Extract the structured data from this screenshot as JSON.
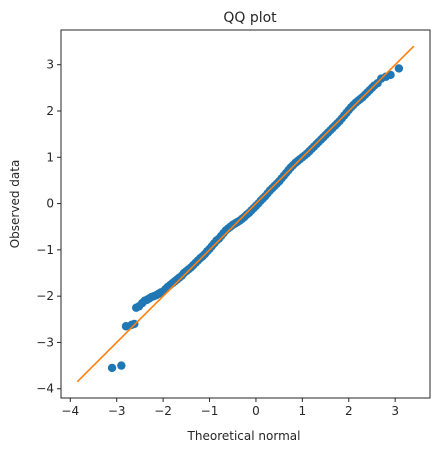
{
  "chart_data": {
    "type": "scatter",
    "title": "QQ plot",
    "xlabel": "Theoretical normal",
    "ylabel": "Observed data",
    "xlim": [
      -4.2,
      3.75
    ],
    "ylim": [
      -4.2,
      3.75
    ],
    "xticks": [
      -4,
      -3,
      -2,
      -1,
      0,
      1,
      2,
      3
    ],
    "yticks": [
      -4,
      -3,
      -2,
      -1,
      0,
      1,
      2,
      3
    ],
    "grid": false,
    "colors": {
      "points": "#1f77b4",
      "line": "#ff7f0e",
      "axes": "#262626"
    },
    "reference_line": {
      "x": [
        -3.85,
        3.4
      ],
      "y": [
        -3.85,
        3.4
      ]
    },
    "points": [
      {
        "x": -3.1,
        "y": -3.55
      },
      {
        "x": -2.9,
        "y": -3.5
      },
      {
        "x": -2.8,
        "y": -2.65
      },
      {
        "x": -2.68,
        "y": -2.62
      },
      {
        "x": -2.62,
        "y": -2.6
      },
      {
        "x": -2.58,
        "y": -2.25
      },
      {
        "x": -2.52,
        "y": -2.22
      },
      {
        "x": -2.45,
        "y": -2.15
      },
      {
        "x": -2.4,
        "y": -2.1
      },
      {
        "x": -2.35,
        "y": -2.08
      },
      {
        "x": -2.3,
        "y": -2.05
      },
      {
        "x": -2.25,
        "y": -2.02
      },
      {
        "x": -2.2,
        "y": -2.0
      },
      {
        "x": -2.15,
        "y": -1.98
      },
      {
        "x": -2.1,
        "y": -1.95
      },
      {
        "x": -2.05,
        "y": -1.92
      },
      {
        "x": -2.0,
        "y": -1.9
      },
      {
        "x": -1.95,
        "y": -1.85
      },
      {
        "x": -1.9,
        "y": -1.8
      },
      {
        "x": -1.85,
        "y": -1.76
      },
      {
        "x": -1.8,
        "y": -1.72
      },
      {
        "x": -1.75,
        "y": -1.68
      },
      {
        "x": -1.7,
        "y": -1.64
      },
      {
        "x": -1.65,
        "y": -1.6
      },
      {
        "x": -1.6,
        "y": -1.56
      },
      {
        "x": -1.55,
        "y": -1.5
      },
      {
        "x": -1.5,
        "y": -1.46
      },
      {
        "x": -1.45,
        "y": -1.42
      },
      {
        "x": -1.4,
        "y": -1.38
      },
      {
        "x": -1.35,
        "y": -1.33
      },
      {
        "x": -1.3,
        "y": -1.28
      },
      {
        "x": -1.25,
        "y": -1.23
      },
      {
        "x": -1.2,
        "y": -1.18
      },
      {
        "x": -1.15,
        "y": -1.14
      },
      {
        "x": -1.1,
        "y": -1.09
      },
      {
        "x": -1.05,
        "y": -1.03
      },
      {
        "x": -1.0,
        "y": -0.98
      },
      {
        "x": -0.95,
        "y": -0.92
      },
      {
        "x": -0.9,
        "y": -0.86
      },
      {
        "x": -0.85,
        "y": -0.8
      },
      {
        "x": -0.8,
        "y": -0.76
      },
      {
        "x": -0.75,
        "y": -0.7
      },
      {
        "x": -0.7,
        "y": -0.64
      },
      {
        "x": -0.65,
        "y": -0.58
      },
      {
        "x": -0.6,
        "y": -0.54
      },
      {
        "x": -0.55,
        "y": -0.5
      },
      {
        "x": -0.5,
        "y": -0.46
      },
      {
        "x": -0.45,
        "y": -0.43
      },
      {
        "x": -0.4,
        "y": -0.4
      },
      {
        "x": -0.35,
        "y": -0.37
      },
      {
        "x": -0.3,
        "y": -0.33
      },
      {
        "x": -0.25,
        "y": -0.29
      },
      {
        "x": -0.2,
        "y": -0.24
      },
      {
        "x": -0.15,
        "y": -0.2
      },
      {
        "x": -0.1,
        "y": -0.15
      },
      {
        "x": -0.05,
        "y": -0.1
      },
      {
        "x": 0.0,
        "y": -0.05
      },
      {
        "x": 0.05,
        "y": 0.0
      },
      {
        "x": 0.1,
        "y": 0.06
      },
      {
        "x": 0.15,
        "y": 0.11
      },
      {
        "x": 0.2,
        "y": 0.16
      },
      {
        "x": 0.25,
        "y": 0.22
      },
      {
        "x": 0.3,
        "y": 0.28
      },
      {
        "x": 0.35,
        "y": 0.33
      },
      {
        "x": 0.4,
        "y": 0.38
      },
      {
        "x": 0.45,
        "y": 0.43
      },
      {
        "x": 0.5,
        "y": 0.48
      },
      {
        "x": 0.55,
        "y": 0.54
      },
      {
        "x": 0.6,
        "y": 0.6
      },
      {
        "x": 0.65,
        "y": 0.66
      },
      {
        "x": 0.7,
        "y": 0.72
      },
      {
        "x": 0.75,
        "y": 0.78
      },
      {
        "x": 0.8,
        "y": 0.83
      },
      {
        "x": 0.85,
        "y": 0.88
      },
      {
        "x": 0.9,
        "y": 0.92
      },
      {
        "x": 0.95,
        "y": 0.96
      },
      {
        "x": 1.0,
        "y": 1.0
      },
      {
        "x": 1.05,
        "y": 1.04
      },
      {
        "x": 1.1,
        "y": 1.08
      },
      {
        "x": 1.15,
        "y": 1.13
      },
      {
        "x": 1.2,
        "y": 1.18
      },
      {
        "x": 1.25,
        "y": 1.23
      },
      {
        "x": 1.3,
        "y": 1.28
      },
      {
        "x": 1.35,
        "y": 1.33
      },
      {
        "x": 1.4,
        "y": 1.38
      },
      {
        "x": 1.45,
        "y": 1.43
      },
      {
        "x": 1.5,
        "y": 1.48
      },
      {
        "x": 1.55,
        "y": 1.53
      },
      {
        "x": 1.6,
        "y": 1.58
      },
      {
        "x": 1.65,
        "y": 1.63
      },
      {
        "x": 1.7,
        "y": 1.68
      },
      {
        "x": 1.75,
        "y": 1.73
      },
      {
        "x": 1.8,
        "y": 1.78
      },
      {
        "x": 1.85,
        "y": 1.84
      },
      {
        "x": 1.9,
        "y": 1.9
      },
      {
        "x": 1.95,
        "y": 1.96
      },
      {
        "x": 2.0,
        "y": 2.02
      },
      {
        "x": 2.05,
        "y": 2.08
      },
      {
        "x": 2.1,
        "y": 2.13
      },
      {
        "x": 2.15,
        "y": 2.18
      },
      {
        "x": 2.2,
        "y": 2.22
      },
      {
        "x": 2.25,
        "y": 2.26
      },
      {
        "x": 2.3,
        "y": 2.3
      },
      {
        "x": 2.35,
        "y": 2.35
      },
      {
        "x": 2.4,
        "y": 2.4
      },
      {
        "x": 2.45,
        "y": 2.45
      },
      {
        "x": 2.5,
        "y": 2.5
      },
      {
        "x": 2.55,
        "y": 2.55
      },
      {
        "x": 2.62,
        "y": 2.6
      },
      {
        "x": 2.7,
        "y": 2.7
      },
      {
        "x": 2.8,
        "y": 2.74
      },
      {
        "x": 2.9,
        "y": 2.78
      },
      {
        "x": 3.08,
        "y": 2.92
      }
    ]
  }
}
